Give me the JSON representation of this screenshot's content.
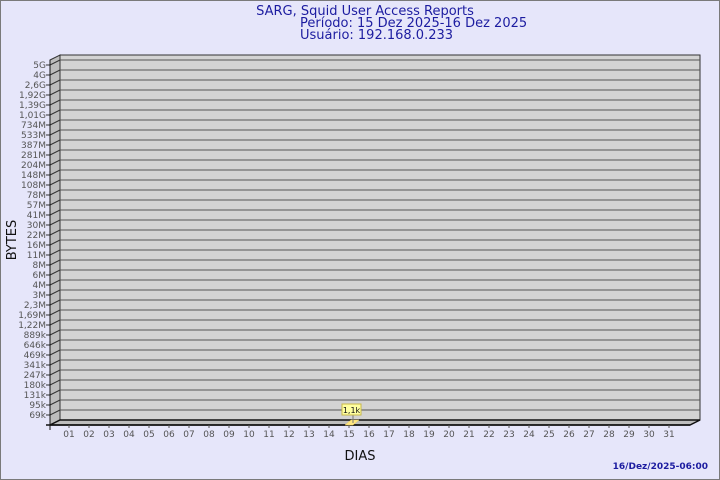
{
  "chart_data": {
    "type": "bar",
    "title": "SARG, Squid User Access Reports",
    "subtitle": [
      "Período: 15 Dez 2025-16 Dez 2025",
      "Usuário: 192.168.0.233"
    ],
    "xlabel": "DIAS",
    "ylabel": "BYTES",
    "y_scale": "log",
    "y_tick_labels": [
      "5G",
      "4G",
      "2,6G",
      "1,92G",
      "1,39G",
      "1,01G",
      "734M",
      "533M",
      "387M",
      "281M",
      "204M",
      "148M",
      "108M",
      "78M",
      "57M",
      "41M",
      "30M",
      "22M",
      "16M",
      "11M",
      "8M",
      "6M",
      "4M",
      "3M",
      "2,3M",
      "1,69M",
      "1,22M",
      "889k",
      "646k",
      "469k",
      "341k",
      "247k",
      "180k",
      "131k",
      "95k",
      "69k"
    ],
    "categories": [
      "01",
      "02",
      "03",
      "04",
      "05",
      "06",
      "07",
      "08",
      "09",
      "10",
      "11",
      "12",
      "13",
      "14",
      "15",
      "16",
      "17",
      "18",
      "19",
      "20",
      "21",
      "22",
      "23",
      "24",
      "25",
      "26",
      "27",
      "28",
      "29",
      "30",
      "31"
    ],
    "bars": [
      {
        "category": "15",
        "value": 1100,
        "label": "1,1k"
      }
    ],
    "grid": true,
    "legend": "none",
    "colors": {
      "background": "#e6e6fa",
      "plot": "#d3d3d3",
      "bar": "#ffe680",
      "label_bg": "#ffffa0",
      "title": "#1c1ca0"
    },
    "footer": "16/Dez/2025-06:00"
  }
}
